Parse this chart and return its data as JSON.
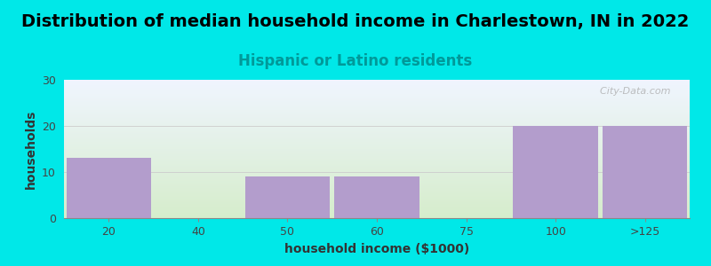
{
  "title": "Distribution of median household income in Charlestown, IN in 2022",
  "subtitle": "Hispanic or Latino residents",
  "xlabel": "household income ($1000)",
  "ylabel": "households",
  "categories": [
    "20",
    "40",
    "50",
    "60",
    "75",
    "100",
    ">125"
  ],
  "values": [
    13,
    0,
    9,
    9,
    0,
    20,
    20
  ],
  "bar_color": "#b39dcc",
  "bar_edge_color": "#b39dcc",
  "background_color": "#00e8e8",
  "plot_bg_top": "#f0f5ff",
  "plot_bg_bottom": "#d6edcc",
  "ylim": [
    0,
    30
  ],
  "yticks": [
    0,
    10,
    20,
    30
  ],
  "grid_color": "#cccccc",
  "title_fontsize": 14,
  "subtitle_fontsize": 12,
  "subtitle_color": "#009999",
  "axis_label_fontsize": 10,
  "tick_fontsize": 9,
  "watermark": "  City-Data.com"
}
